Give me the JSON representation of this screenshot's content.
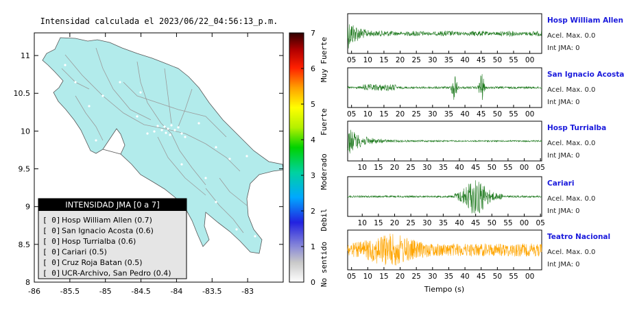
{
  "map": {
    "title": "Intensidad calculada el 2023/06/22_04:56:13_p.m.",
    "x_ticks": [
      "-86",
      "-85.5",
      "-85",
      "-84.5",
      "-84",
      "-83.5",
      "-83"
    ],
    "y_ticks": [
      "11",
      "10.5",
      "10",
      "9.5",
      "9",
      "8.5",
      "8"
    ],
    "xlim": [
      -86,
      -82.5
    ],
    "ylim": [
      8,
      11.3
    ]
  },
  "colorbar": {
    "values": [
      "0",
      "1",
      "2",
      "3",
      "4",
      "5",
      "6",
      "7"
    ],
    "labels": [
      "No sentido",
      "Debil",
      "Moderado",
      "Fuerte",
      "Muy Fuerte"
    ]
  },
  "legend": {
    "title": "INTENSIDAD JMA [0 a 7]",
    "items": [
      {
        "level": "[ 0]",
        "name": "Hosp William Allen (0.7)"
      },
      {
        "level": "[ 0]",
        "name": "San Ignacio Acosta (0.6)"
      },
      {
        "level": "[ 0]",
        "name": "Hosp Turrialba (0.6)"
      },
      {
        "level": "[ 0]",
        "name": "Cariari (0.5)"
      },
      {
        "level": "[ 0]",
        "name": "Cruz Roja Batan (0.5)"
      },
      {
        "level": "[ 0]",
        "name": "UCR-Archivo, San Pedro (0.4)"
      }
    ]
  },
  "colors": {
    "land": "#b2ebeb",
    "wave_green": "#1f7a1f",
    "wave_orange": "#ffa500",
    "station_name": "#1a1adc"
  },
  "chart_data": {
    "type": "line",
    "xlabel": "Tiempo (s)",
    "panels": [
      {
        "name": "Hosp William Allen",
        "accel": "Acel. Max. 0.0",
        "int": "Int JMA: 0",
        "ticks": [
          "05",
          "10",
          "15",
          "20",
          "25",
          "30",
          "35",
          "40",
          "45",
          "50",
          "55",
          "00"
        ],
        "color": "green"
      },
      {
        "name": "San Ignacio Acosta",
        "accel": "Acel. Max. 0.0",
        "int": "Int JMA: 0",
        "ticks": [
          "05",
          "10",
          "15",
          "20",
          "25",
          "30",
          "35",
          "40",
          "45",
          "50",
          "55",
          "00"
        ],
        "color": "green"
      },
      {
        "name": "Hosp Turrialba",
        "accel": "Acel. Max. 0.0",
        "int": "Int JMA: 0",
        "ticks": [
          "10",
          "15",
          "20",
          "25",
          "30",
          "35",
          "40",
          "45",
          "50",
          "55",
          "00",
          "05"
        ],
        "color": "green"
      },
      {
        "name": "Cariari",
        "accel": "Acel. Max. 0.0",
        "int": "Int JMA: 0",
        "ticks": [
          "10",
          "15",
          "20",
          "25",
          "30",
          "35",
          "40",
          "45",
          "50",
          "55",
          "00",
          "05"
        ],
        "color": "green"
      },
      {
        "name": "Teatro Nacional",
        "accel": "Acel. Max. 0.0",
        "int": "Int JMA: 0",
        "ticks": [
          "05",
          "10",
          "15",
          "20",
          "25",
          "30",
          "35",
          "40",
          "45",
          "50",
          "55",
          "00"
        ],
        "color": "orange"
      }
    ]
  }
}
